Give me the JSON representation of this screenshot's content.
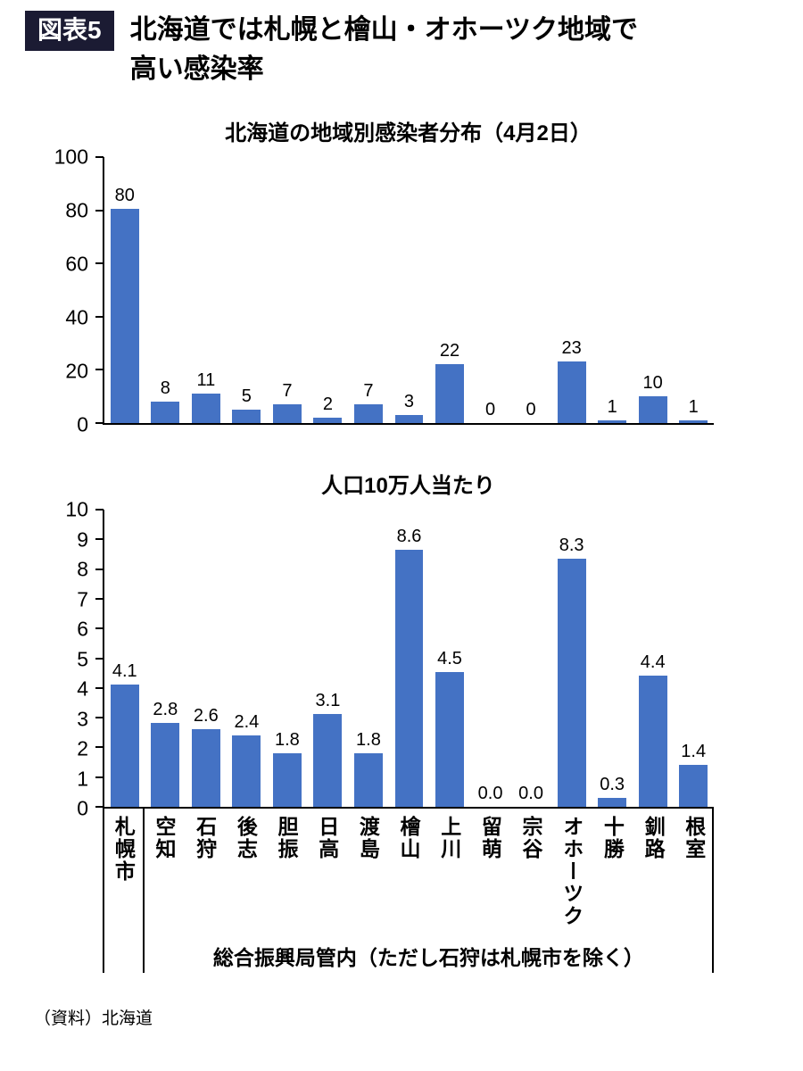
{
  "header": {
    "badge": "図表5",
    "title_line1": "北海道では札幌と檜山・オホーツク地域で",
    "title_line2": "高い感染率"
  },
  "colors": {
    "bar": "#4472C4",
    "badge_bg": "#1b1b33",
    "axis": "#000000"
  },
  "chart_data": [
    {
      "type": "bar",
      "title": "北海道の地域別感染者分布（4月2日）",
      "categories": [
        "札幌市",
        "空知",
        "石狩",
        "後志",
        "胆振",
        "日高",
        "渡島",
        "檜山",
        "上川",
        "留萌",
        "宗谷",
        "オホーツク",
        "十勝",
        "釧路",
        "根室"
      ],
      "values": [
        80,
        8,
        11,
        5,
        7,
        2,
        7,
        3,
        22,
        0,
        0,
        23,
        1,
        10,
        1
      ],
      "value_labels": [
        "80",
        "8",
        "11",
        "5",
        "7",
        "2",
        "7",
        "3",
        "22",
        "0",
        "0",
        "23",
        "1",
        "10",
        "1"
      ],
      "ylim": [
        0,
        100
      ],
      "yticks": [
        0,
        20,
        40,
        60,
        80,
        100
      ],
      "xlabel": "",
      "ylabel": "",
      "grid": false,
      "legend": "none",
      "show_x_labels": false
    },
    {
      "type": "bar",
      "title": "人口10万人当たり",
      "categories": [
        "札幌市",
        "空知",
        "石狩",
        "後志",
        "胆振",
        "日高",
        "渡島",
        "檜山",
        "上川",
        "留萌",
        "宗谷",
        "オホーツク",
        "十勝",
        "釧路",
        "根室"
      ],
      "values": [
        4.1,
        2.8,
        2.6,
        2.4,
        1.8,
        3.1,
        1.8,
        8.6,
        4.5,
        0.0,
        0.0,
        8.3,
        0.3,
        4.4,
        1.4
      ],
      "value_labels": [
        "4.1",
        "2.8",
        "2.6",
        "2.4",
        "1.8",
        "3.1",
        "1.8",
        "8.6",
        "4.5",
        "0.0",
        "0.0",
        "8.3",
        "0.3",
        "4.4",
        "1.4"
      ],
      "ylim": [
        0,
        10
      ],
      "yticks": [
        0,
        1,
        2,
        3,
        4,
        5,
        6,
        7,
        8,
        9,
        10
      ],
      "xlabel": "総合振興局管内（ただし石狩は札幌市を除く）",
      "ylabel": "",
      "grid": false,
      "legend": "none",
      "show_x_labels": true
    }
  ],
  "footer": {
    "axis_note": "総合振興局管内（ただし石狩は札幌市を除く）",
    "source": "（資料）北海道"
  }
}
